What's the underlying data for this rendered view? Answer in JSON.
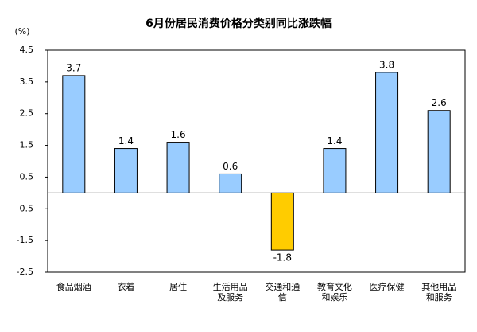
{
  "chart_data": {
    "type": "bar",
    "title": "6月份居民消费价格分类别同比涨跌幅",
    "y_label": "(%)",
    "categories": [
      "食品烟酒",
      "衣着",
      "居住",
      "生活用品及服务",
      "交通和通信",
      "教育文化和娱乐",
      "医疗保健",
      "其他用品和服务"
    ],
    "values": [
      3.7,
      1.4,
      1.6,
      0.6,
      -1.8,
      1.4,
      3.8,
      2.6
    ],
    "color": "#99ccff",
    "negative_color": "#ffcc00",
    "ylim": [
      -2.5,
      4.5
    ],
    "yticks": [
      4.5,
      3.5,
      2.5,
      1.5,
      0.5,
      -0.5,
      -1.5,
      -2.5
    ],
    "grid": false
  }
}
